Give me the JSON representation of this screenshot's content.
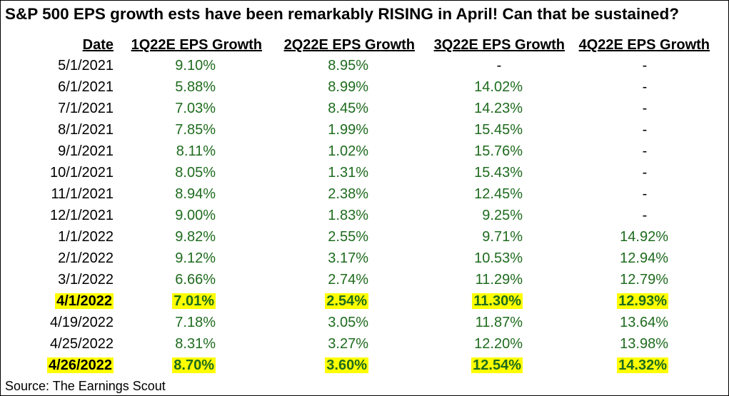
{
  "title": "S&P 500 EPS growth ests have been remarkably RISING in April! Can that be sustained?",
  "headers": [
    "Date",
    "1Q22E EPS Growth",
    "2Q22E EPS Growth",
    "3Q22E EPS Growth",
    "4Q22E EPS Growth"
  ],
  "rows": [
    {
      "date": "5/1/2021",
      "q1": "9.10%",
      "q2": "8.95%",
      "q3": "-",
      "q4": "-",
      "highlight": false
    },
    {
      "date": "6/1/2021",
      "q1": "5.88%",
      "q2": "8.99%",
      "q3": "14.02%",
      "q4": "-",
      "highlight": false
    },
    {
      "date": "7/1/2021",
      "q1": "7.03%",
      "q2": "8.45%",
      "q3": "14.23%",
      "q4": "-",
      "highlight": false
    },
    {
      "date": "8/1/2021",
      "q1": "7.85%",
      "q2": "1.99%",
      "q3": "15.45%",
      "q4": "-",
      "highlight": false
    },
    {
      "date": "9/1/2021",
      "q1": "8.11%",
      "q2": "1.02%",
      "q3": "15.76%",
      "q4": "-",
      "highlight": false
    },
    {
      "date": "10/1/2021",
      "q1": "8.05%",
      "q2": "1.31%",
      "q3": "15.43%",
      "q4": "-",
      "highlight": false
    },
    {
      "date": "11/1/2021",
      "q1": "8.94%",
      "q2": "2.38%",
      "q3": "12.45%",
      "q4": "-",
      "highlight": false
    },
    {
      "date": "12/1/2021",
      "q1": "9.00%",
      "q2": "1.83%",
      "q3": "9.25%",
      "q4": "-",
      "highlight": false
    },
    {
      "date": "1/1/2022",
      "q1": "9.82%",
      "q2": "2.55%",
      "q3": "9.71%",
      "q4": "14.92%",
      "highlight": false
    },
    {
      "date": "2/1/2022",
      "q1": "9.12%",
      "q2": "3.17%",
      "q3": "10.53%",
      "q4": "12.94%",
      "highlight": false
    },
    {
      "date": "3/1/2022",
      "q1": "6.66%",
      "q2": "2.74%",
      "q3": "11.29%",
      "q4": "12.79%",
      "highlight": false
    },
    {
      "date": "4/1/2022",
      "q1": "7.01%",
      "q2": "2.54%",
      "q3": "11.30%",
      "q4": "12.93%",
      "highlight": true
    },
    {
      "date": "4/19/2022",
      "q1": "7.18%",
      "q2": "3.05%",
      "q3": "11.87%",
      "q4": "13.64%",
      "highlight": false
    },
    {
      "date": "4/25/2022",
      "q1": "8.31%",
      "q2": "3.27%",
      "q3": "12.20%",
      "q4": "13.98%",
      "highlight": false
    },
    {
      "date": "4/26/2022",
      "q1": "8.70%",
      "q2": "3.60%",
      "q3": "12.54%",
      "q4": "14.32%",
      "highlight": true
    }
  ],
  "source": "Source: The Earnings Scout",
  "colors": {
    "value_text": "#1e6b1e",
    "highlight": "#ffff00"
  }
}
